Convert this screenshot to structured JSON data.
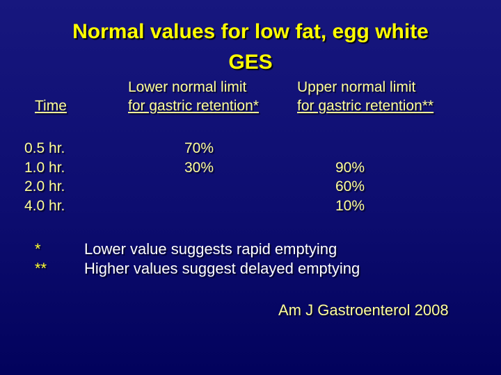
{
  "title": {
    "line1": "Normal values for low fat, egg white",
    "line2": "GES"
  },
  "table": {
    "headers": {
      "time": "Time",
      "lower_line1": "Lower normal limit",
      "lower_line2": "for gastric retention*",
      "upper_line1": "Upper normal limit",
      "upper_line2": "for gastric retention**"
    },
    "rows": [
      {
        "time": "0.5 hr.",
        "lower": "70%",
        "upper": ""
      },
      {
        "time": "1.0 hr.",
        "lower": "30%",
        "upper": "90%"
      },
      {
        "time": "2.0 hr.",
        "lower": "",
        "upper": "60%"
      },
      {
        "time": "4.0 hr.",
        "lower": "",
        "upper": "10%"
      }
    ]
  },
  "footnotes": [
    {
      "marker": "*",
      "text": "Lower value suggests rapid emptying"
    },
    {
      "marker": "**",
      "text": "Higher values suggest delayed emptying"
    }
  ],
  "citation": "Am J Gastroenterol 2008",
  "colors": {
    "background_top": "#17177E",
    "background_bottom": "#02025C",
    "title_yellow": "#FFFF00",
    "body_pale_yellow": "#FFFF99",
    "marker_yellow": "#FFFF33",
    "footnote_white": "#FFFFFF"
  }
}
